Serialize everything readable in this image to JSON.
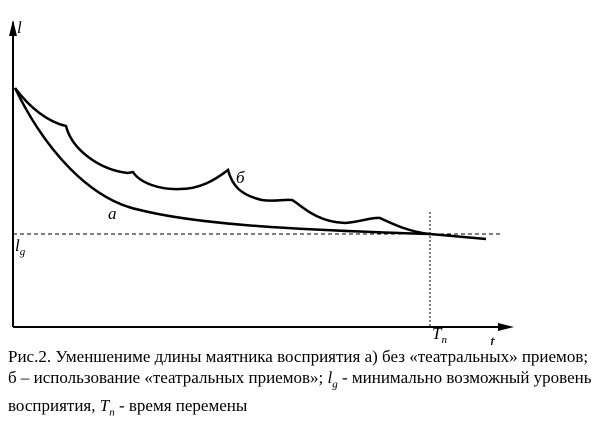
{
  "axes": {
    "y_label": "l",
    "x_label": "t",
    "level_label": "l",
    "level_sub": "g",
    "time_label": "T",
    "time_sub": "n"
  },
  "curves": {
    "a": "а",
    "b": "б"
  },
  "caption": {
    "text1": "Рис.2. Уменшениме длины маятника восприятия а) без «театральных» приемов; б – использование «театральных приемов»; ",
    "sym1": "l",
    "sub1": "g",
    "text2": " - минимально возможный уровень восприятия, ",
    "sym2": "T",
    "sub2": "n",
    "text3": " - время перемены"
  }
}
